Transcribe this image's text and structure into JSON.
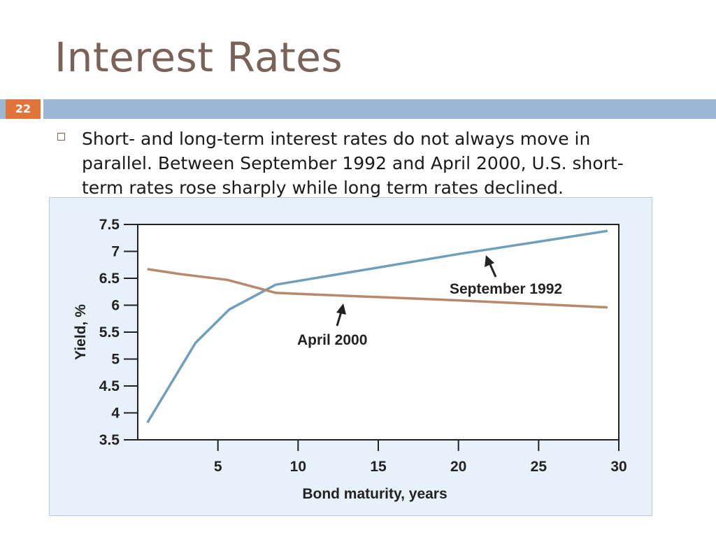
{
  "slide": {
    "title": "Interest Rates",
    "number": "22",
    "bullet": "Short- and long-term interest rates do not always move in parallel. Between September 1992 and April 2000, U.S. short-term rates rose sharply while long term rates declined."
  },
  "colors": {
    "title": "#7a6259",
    "band": "#9bb7d3",
    "number_bg": "#e0743b",
    "chart_bg": "#e8f1f9",
    "sep1992": "#6f9fba",
    "apr2000": "#b8896b"
  },
  "chart_data": {
    "type": "line",
    "title": "",
    "xlabel": "Bond maturity, years",
    "ylabel": "Yield, %",
    "xlim": [
      0,
      30
    ],
    "ylim": [
      3.5,
      7.5
    ],
    "xticks": [
      "5",
      "10",
      "15",
      "20",
      "25",
      "30"
    ],
    "yticks": [
      "7.5",
      "7",
      "6.5",
      "6",
      "5.5",
      "5",
      "4.5",
      "4",
      "3.5"
    ],
    "xtick_values": [
      5,
      10,
      15,
      20,
      25,
      30
    ],
    "ytick_values": [
      7.5,
      7,
      6.5,
      6,
      5.5,
      5,
      4.5,
      4,
      3.5
    ],
    "grid": false,
    "series": [
      {
        "name": "September 1992",
        "x": [
          0.6,
          3.6,
          5.7,
          8.6,
          10,
          15,
          20,
          25,
          29.3
        ],
        "y": [
          3.82,
          5.3,
          5.92,
          6.38,
          6.45,
          6.7,
          6.95,
          7.18,
          7.38
        ]
      },
      {
        "name": "April 2000",
        "x": [
          0.6,
          2.6,
          5.6,
          7.6,
          8.6,
          10,
          15,
          20,
          25,
          29.3
        ],
        "y": [
          6.67,
          6.58,
          6.47,
          6.31,
          6.23,
          6.21,
          6.15,
          6.09,
          6.02,
          5.96
        ]
      }
    ],
    "annotations": [
      {
        "text": "September 1992",
        "series": "September 1992"
      },
      {
        "text": "April 2000",
        "series": "April 2000"
      }
    ]
  }
}
